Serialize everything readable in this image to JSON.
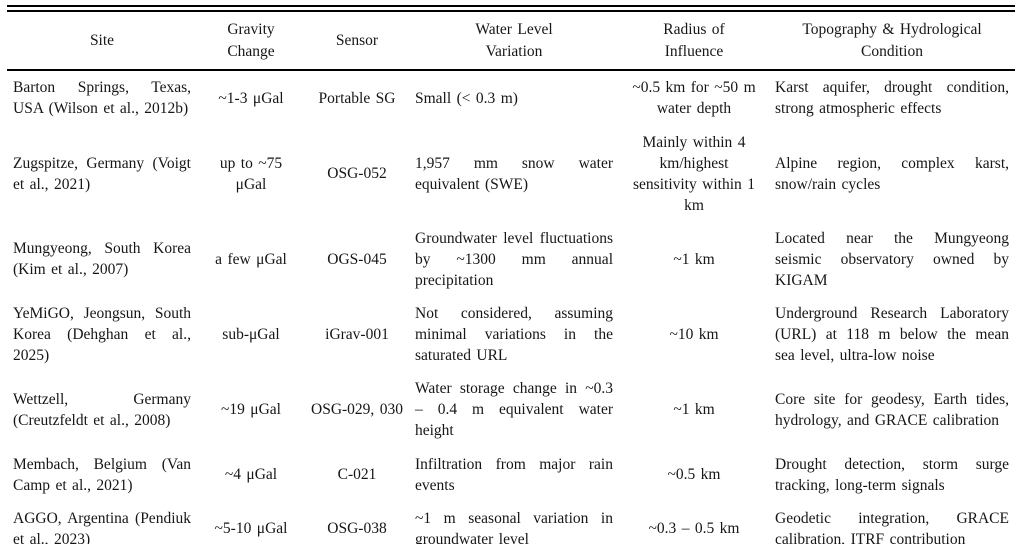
{
  "table": {
    "columns": [
      {
        "label": "Site"
      },
      {
        "label": "Gravity\nChange"
      },
      {
        "label": "Sensor"
      },
      {
        "label": "Water Level\nVariation"
      },
      {
        "label": "Radius of\nInfluence"
      },
      {
        "label": "Topography & Hydrological\nCondition"
      }
    ],
    "rows": [
      {
        "site": "Barton Springs, Texas, USA (Wilson et al., 2012b)",
        "gravity_change": "~1-3 μGal",
        "sensor": "Portable SG",
        "water_level_variation": "Small (< 0.3 m)",
        "radius_of_influence": "~0.5 km for ~50 m water depth",
        "topography_condition": "Karst aquifer, drought condition, strong atmospheric effects"
      },
      {
        "site": "Zugspitze, Germany (Voigt et al., 2021)",
        "gravity_change": "up to ~75 μGal",
        "sensor": "OSG-052",
        "water_level_variation": "1,957 mm snow water equivalent (SWE)",
        "radius_of_influence": "Mainly within 4 km/highest sensitivity within 1 km",
        "topography_condition": "Alpine region, complex karst, snow/rain cycles"
      },
      {
        "site": "Mungyeong, South Korea (Kim et al., 2007)",
        "gravity_change": "a few μGal",
        "sensor": "OGS-045",
        "water_level_variation": "Groundwater level fluctuations by ~1300 mm annual precipitation",
        "radius_of_influence": "~1 km",
        "topography_condition": "Located near the Mungyeong seismic observatory owned by KIGAM"
      },
      {
        "site": "YeMiGO, Jeongsun, South Korea (Dehghan et al., 2025)",
        "gravity_change": "sub-μGal",
        "sensor": "iGrav-001",
        "water_level_variation": "Not considered, assuming minimal variations in the saturated URL",
        "radius_of_influence": "~10 km",
        "topography_condition": "Underground Research Laboratory (URL) at 118 m below the mean sea level, ultra-low noise"
      },
      {
        "site": "Wettzell, Germany (Creutzfeldt et al., 2008)",
        "gravity_change": "~19 μGal",
        "sensor": "OSG-029, 030",
        "water_level_variation": "Water storage change in ~0.3 – 0.4 m equivalent water height",
        "radius_of_influence": "~1 km",
        "topography_condition": "Core site for geodesy, Earth tides, hydrology, and GRACE calibration"
      },
      {
        "site": "Membach, Belgium (Van Camp et al., 2021)",
        "gravity_change": "~4 μGal",
        "sensor": "C-021",
        "water_level_variation": "Infiltration from major rain events",
        "radius_of_influence": "~0.5 km",
        "topography_condition": "Drought detection, storm surge tracking, long-term signals"
      },
      {
        "site": "AGGO, Argentina (Pendiuk et al., 2023)",
        "gravity_change": "~5-10 μGal",
        "sensor": "OSG-038",
        "water_level_variation": "~1 m seasonal variation in groundwater level",
        "radius_of_influence": "~0.3 – 0.5 km",
        "topography_condition": "Geodetic integration, GRACE calibration, ITRF contribution"
      }
    ]
  }
}
